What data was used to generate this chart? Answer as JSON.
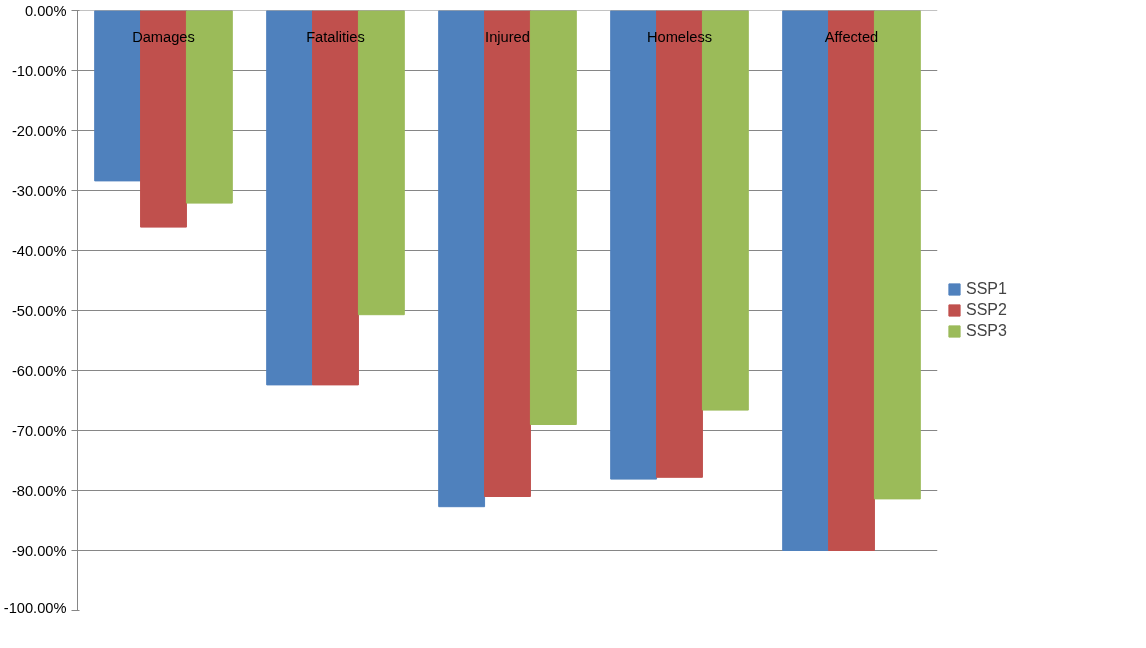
{
  "chart_data": {
    "type": "bar",
    "categories": [
      "Damages",
      "Fatalities",
      "Injured",
      "Homeless",
      "Affected"
    ],
    "series": [
      {
        "name": "SSP1",
        "color": "#4f81bd",
        "values": [
          -28.4,
          -62.4,
          -82.7,
          -78.1,
          -90.0
        ]
      },
      {
        "name": "SSP2",
        "color": "#c0504d",
        "values": [
          -36.1,
          -62.4,
          -81.0,
          -77.8,
          -90.0
        ]
      },
      {
        "name": "SSP3",
        "color": "#9bbb59",
        "values": [
          -32.1,
          -50.7,
          -69.0,
          -66.6,
          -81.4
        ]
      }
    ],
    "ylim": [
      -100,
      0
    ],
    "yticks": [
      {
        "value": 0,
        "label": "0.00%"
      },
      {
        "value": -10,
        "label": "-10.00%"
      },
      {
        "value": -20,
        "label": "-20.00%"
      },
      {
        "value": -30,
        "label": "-30.00%"
      },
      {
        "value": -40,
        "label": "-40.00%"
      },
      {
        "value": -50,
        "label": "-50.00%"
      },
      {
        "value": -60,
        "label": "-60.00%"
      },
      {
        "value": -70,
        "label": "-70.00%"
      },
      {
        "value": -80,
        "label": "-80.00%"
      },
      {
        "value": -90,
        "label": "-90.00%"
      },
      {
        "value": -100,
        "label": "-100.00%"
      }
    ],
    "grid": "y",
    "legend": "right"
  }
}
